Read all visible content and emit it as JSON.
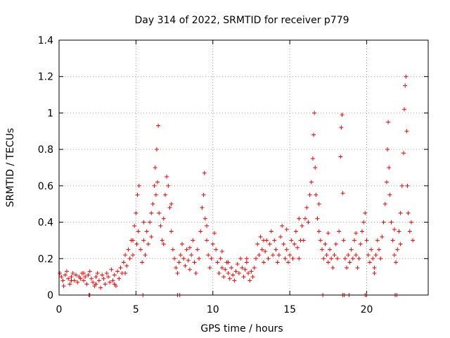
{
  "chart_data": {
    "type": "scatter",
    "title": "Day 314 of 2022, SRMTID for receiver p779",
    "xlabel": "GPS time / hours",
    "ylabel": "SRMTID / TECUs",
    "xlim": [
      0,
      24
    ],
    "ylim": [
      0,
      1.4
    ],
    "xticks": [
      0,
      5,
      10,
      15,
      20
    ],
    "xtick_labels": [
      "0",
      "5",
      "10",
      "15",
      "20"
    ],
    "yticks": [
      0,
      0.2,
      0.4,
      0.6,
      0.8,
      1.0,
      1.2,
      1.4
    ],
    "ytick_labels": [
      "0",
      "0.2",
      "0.4",
      "0.6",
      "0.8",
      "1",
      "1.2",
      "1.4"
    ],
    "grid": true,
    "marker": "+",
    "color": "#ff0000",
    "series": [
      {
        "name": "SRMTID",
        "points": [
          [
            0.05,
            0.12
          ],
          [
            0.15,
            0.1
          ],
          [
            0.25,
            0.08
          ],
          [
            0.3,
            0.05
          ],
          [
            0.4,
            0.11
          ],
          [
            0.5,
            0.13
          ],
          [
            0.6,
            0.09
          ],
          [
            0.7,
            0.06
          ],
          [
            0.8,
            0.1
          ],
          [
            0.9,
            0.12
          ],
          [
            1.0,
            0.08
          ],
          [
            1.1,
            0.11
          ],
          [
            1.2,
            0.07
          ],
          [
            1.3,
            0.1
          ],
          [
            1.4,
            0.09
          ],
          [
            1.5,
            0.12
          ],
          [
            1.6,
            0.08
          ],
          [
            1.7,
            0.1
          ],
          [
            1.8,
            0.06
          ],
          [
            1.9,
            0.11
          ],
          [
            2.0,
            0.13
          ],
          [
            2.1,
            0.09
          ],
          [
            2.2,
            0.07
          ],
          [
            2.3,
            0.05
          ],
          [
            2.4,
            0.1
          ],
          [
            2.5,
            0.12
          ],
          [
            2.6,
            0.08
          ],
          [
            2.7,
            0.04
          ],
          [
            2.8,
            0.11
          ],
          [
            2.9,
            0.09
          ],
          [
            3.0,
            0.06
          ],
          [
            3.1,
            0.12
          ],
          [
            3.2,
            0.1
          ],
          [
            3.3,
            0.07
          ],
          [
            3.4,
            0.14
          ],
          [
            3.5,
            0.08
          ],
          [
            3.6,
            0.11
          ],
          [
            3.7,
            0.05
          ],
          [
            3.8,
            0.13
          ],
          [
            3.9,
            0.09
          ],
          [
            4.0,
            0.15
          ],
          [
            4.1,
            0.12
          ],
          [
            4.2,
            0.18
          ],
          [
            4.3,
            0.22
          ],
          [
            4.4,
            0.16
          ],
          [
            4.5,
            0.25
          ],
          [
            4.6,
            0.2
          ],
          [
            4.7,
            0.3
          ],
          [
            4.8,
            0.22
          ],
          [
            4.9,
            0.38
          ],
          [
            5.0,
            0.45
          ],
          [
            5.05,
            0.28
          ],
          [
            5.1,
            0.55
          ],
          [
            5.15,
            0.35
          ],
          [
            5.2,
            0.6
          ],
          [
            5.3,
            0.25
          ],
          [
            5.4,
            0.18
          ],
          [
            5.5,
            0.3
          ],
          [
            5.6,
            0.22
          ],
          [
            5.7,
            0.35
          ],
          [
            5.8,
            0.28
          ],
          [
            5.9,
            0.4
          ],
          [
            6.0,
            0.32
          ],
          [
            6.1,
            0.5
          ],
          [
            6.2,
            0.6
          ],
          [
            6.25,
            0.7
          ],
          [
            6.3,
            0.55
          ],
          [
            6.35,
            0.8
          ],
          [
            6.4,
            0.62
          ],
          [
            6.45,
            0.93
          ],
          [
            6.5,
            0.45
          ],
          [
            6.6,
            0.38
          ],
          [
            6.7,
            0.3
          ],
          [
            6.8,
            0.42
          ],
          [
            6.9,
            0.55
          ],
          [
            7.0,
            0.65
          ],
          [
            7.1,
            0.6
          ],
          [
            7.2,
            0.48
          ],
          [
            7.3,
            0.35
          ],
          [
            7.4,
            0.25
          ],
          [
            7.5,
            0.2
          ],
          [
            7.6,
            0.15
          ],
          [
            7.7,
            0.12
          ],
          [
            7.8,
            0.18
          ],
          [
            7.9,
            0.22
          ],
          [
            8.0,
            0.28
          ],
          [
            8.1,
            0.2
          ],
          [
            8.2,
            0.16
          ],
          [
            8.3,
            0.25
          ],
          [
            8.4,
            0.19
          ],
          [
            8.5,
            0.14
          ],
          [
            8.6,
            0.22
          ],
          [
            8.7,
            0.3
          ],
          [
            8.8,
            0.18
          ],
          [
            8.9,
            0.12
          ],
          [
            9.0,
            0.25
          ],
          [
            9.1,
            0.2
          ],
          [
            9.2,
            0.35
          ],
          [
            9.3,
            0.48
          ],
          [
            9.4,
            0.55
          ],
          [
            9.45,
            0.67
          ],
          [
            9.5,
            0.42
          ],
          [
            9.6,
            0.3
          ],
          [
            9.7,
            0.22
          ],
          [
            9.8,
            0.15
          ],
          [
            9.9,
            0.2
          ],
          [
            10.0,
            0.28
          ],
          [
            10.1,
            0.34
          ],
          [
            10.2,
            0.25
          ],
          [
            10.3,
            0.18
          ],
          [
            10.4,
            0.12
          ],
          [
            10.5,
            0.2
          ],
          [
            10.6,
            0.15
          ],
          [
            10.7,
            0.1
          ],
          [
            10.8,
            0.14
          ],
          [
            10.9,
            0.18
          ],
          [
            11.0,
            0.12
          ],
          [
            11.1,
            0.09
          ],
          [
            11.2,
            0.15
          ],
          [
            11.3,
            0.11
          ],
          [
            11.4,
            0.08
          ],
          [
            11.5,
            0.13
          ],
          [
            11.6,
            0.17
          ],
          [
            11.7,
            0.12
          ],
          [
            11.8,
            0.2
          ],
          [
            11.9,
            0.15
          ],
          [
            12.0,
            0.1
          ],
          [
            12.1,
            0.14
          ],
          [
            12.2,
            0.18
          ],
          [
            12.3,
            0.12
          ],
          [
            12.4,
            0.08
          ],
          [
            12.5,
            0.13
          ],
          [
            12.6,
            0.1
          ],
          [
            12.7,
            0.15
          ],
          [
            12.8,
            0.2
          ],
          [
            12.9,
            0.28
          ],
          [
            13.0,
            0.22
          ],
          [
            13.1,
            0.32
          ],
          [
            13.2,
            0.25
          ],
          [
            13.3,
            0.18
          ],
          [
            13.4,
            0.24
          ],
          [
            13.5,
            0.3
          ],
          [
            13.6,
            0.2
          ],
          [
            13.7,
            0.28
          ],
          [
            13.8,
            0.35
          ],
          [
            13.9,
            0.22
          ],
          [
            14.0,
            0.3
          ],
          [
            14.1,
            0.25
          ],
          [
            14.2,
            0.18
          ],
          [
            14.3,
            0.22
          ],
          [
            14.4,
            0.32
          ],
          [
            14.5,
            0.38
          ],
          [
            14.6,
            0.28
          ],
          [
            14.7,
            0.2
          ],
          [
            14.8,
            0.25
          ],
          [
            14.9,
            0.18
          ],
          [
            15.0,
            0.22
          ],
          [
            15.1,
            0.3
          ],
          [
            15.2,
            0.2
          ],
          [
            15.3,
            0.28
          ],
          [
            15.4,
            0.35
          ],
          [
            15.5,
            0.26
          ],
          [
            15.6,
            0.2
          ],
          [
            15.7,
            0.3
          ],
          [
            15.8,
            0.38
          ],
          [
            15.9,
            0.3
          ],
          [
            16.0,
            0.42
          ],
          [
            16.1,
            0.48
          ],
          [
            16.2,
            0.4
          ],
          [
            16.3,
            0.55
          ],
          [
            16.4,
            0.62
          ],
          [
            16.5,
            0.75
          ],
          [
            16.55,
            0.88
          ],
          [
            16.6,
            1.0
          ],
          [
            16.65,
            0.7
          ],
          [
            16.7,
            0.55
          ],
          [
            16.8,
            0.42
          ],
          [
            16.9,
            0.35
          ],
          [
            17.0,
            0.3
          ],
          [
            17.1,
            0.25
          ],
          [
            17.2,
            0.2
          ],
          [
            17.3,
            0.28
          ],
          [
            17.4,
            0.22
          ],
          [
            17.5,
            0.18
          ],
          [
            17.6,
            0.25
          ],
          [
            17.7,
            0.2
          ],
          [
            17.8,
            0.15
          ],
          [
            17.9,
            0.22
          ],
          [
            18.0,
            0.28
          ],
          [
            18.1,
            0.2
          ],
          [
            18.2,
            0.35
          ],
          [
            18.3,
            0.76
          ],
          [
            18.35,
            0.92
          ],
          [
            18.4,
            0.99
          ],
          [
            18.45,
            0.56
          ],
          [
            18.5,
            0.3
          ],
          [
            18.6,
            0.2
          ],
          [
            18.7,
            0.15
          ],
          [
            18.8,
            0.22
          ],
          [
            18.9,
            0.18
          ],
          [
            19.0,
            0.25
          ],
          [
            19.1,
            0.2
          ],
          [
            19.2,
            0.3
          ],
          [
            19.3,
            0.22
          ],
          [
            19.4,
            0.15
          ],
          [
            19.5,
            0.2
          ],
          [
            19.6,
            0.28
          ],
          [
            19.7,
            0.35
          ],
          [
            19.8,
            0.4
          ],
          [
            19.9,
            0.45
          ],
          [
            20.0,
            0.3
          ],
          [
            20.1,
            0.22
          ],
          [
            20.2,
            0.18
          ],
          [
            20.3,
            0.25
          ],
          [
            20.4,
            0.2
          ],
          [
            20.5,
            0.15
          ],
          [
            20.6,
            0.22
          ],
          [
            20.7,
            0.3
          ],
          [
            20.8,
            0.25
          ],
          [
            20.9,
            0.2
          ],
          [
            21.0,
            0.32
          ],
          [
            21.1,
            0.4
          ],
          [
            21.2,
            0.5
          ],
          [
            21.3,
            0.62
          ],
          [
            21.35,
            0.8
          ],
          [
            21.4,
            0.95
          ],
          [
            21.45,
            0.7
          ],
          [
            21.5,
            0.55
          ],
          [
            21.6,
            0.4
          ],
          [
            21.7,
            0.3
          ],
          [
            21.8,
            0.22
          ],
          [
            21.9,
            0.18
          ],
          [
            22.0,
            0.25
          ],
          [
            22.1,
            0.35
          ],
          [
            22.2,
            0.45
          ],
          [
            22.3,
            0.6
          ],
          [
            22.4,
            0.78
          ],
          [
            22.45,
            1.02
          ],
          [
            22.5,
            1.15
          ],
          [
            22.55,
            1.2
          ],
          [
            22.6,
            0.9
          ],
          [
            22.65,
            0.6
          ],
          [
            22.7,
            0.45
          ],
          [
            22.8,
            0.35
          ],
          [
            22.9,
            0.4
          ],
          [
            23.0,
            0.3
          ],
          [
            22.2,
            0.28
          ],
          [
            21.8,
            0.36
          ],
          [
            20.5,
            0.12
          ],
          [
            19.3,
            0.34
          ],
          [
            17.5,
            0.34
          ],
          [
            16.9,
            0.5
          ],
          [
            15.6,
            0.42
          ],
          [
            14.8,
            0.36
          ],
          [
            13.3,
            0.3
          ],
          [
            12.2,
            0.2
          ],
          [
            11.0,
            0.18
          ],
          [
            10.6,
            0.24
          ],
          [
            9.6,
            0.38
          ],
          [
            8.5,
            0.26
          ],
          [
            7.3,
            0.5
          ],
          [
            6.8,
            0.28
          ],
          [
            6.0,
            0.45
          ],
          [
            5.5,
            0.4
          ],
          [
            4.8,
            0.3
          ],
          [
            4.3,
            0.12
          ],
          [
            3.6,
            0.06
          ],
          [
            2.4,
            0.06
          ],
          [
            1.6,
            0.12
          ],
          [
            0.8,
            0.08
          ],
          [
            1.95,
            0.0
          ],
          [
            2.0,
            0.0
          ],
          [
            5.45,
            0.0
          ],
          [
            7.7,
            0.0
          ],
          [
            7.85,
            0.0
          ],
          [
            17.15,
            0.0
          ],
          [
            18.45,
            0.0
          ],
          [
            18.55,
            0.0
          ],
          [
            18.85,
            0.0
          ],
          [
            19.9,
            0.0
          ],
          [
            20.0,
            0.0
          ],
          [
            21.85,
            0.0
          ],
          [
            21.95,
            0.0
          ]
        ]
      }
    ]
  }
}
